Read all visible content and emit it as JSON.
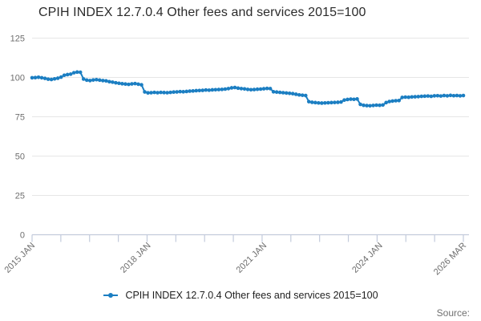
{
  "header": {
    "title": "CPIH INDEX 12.7.0.4 Other fees and services 2015=100"
  },
  "legend": {
    "label": "CPIH INDEX 12.7.0.4 Other fees and services 2015=100"
  },
  "source": {
    "label": "Source:"
  },
  "colors": {
    "line": "#1b7ec2",
    "grid": "#e6e6e6",
    "axis": "#c3cbdc",
    "tick_label": "#6e6e6e",
    "title": "#2b2b2b"
  },
  "chart_data": {
    "type": "line",
    "title": "CPIH INDEX 12.7.0.4 Other fees and services 2015=100",
    "xlabel": "",
    "ylabel": "",
    "ylim": [
      0,
      125
    ],
    "yticks": [
      0,
      25,
      50,
      75,
      100,
      125
    ],
    "grid": "horizontal",
    "legend_position": "bottom-center",
    "x_start": "2015 JAN",
    "x_end": "2026 MAR",
    "x_minor_ticks": 16,
    "x_axis_labels": [
      {
        "label": "2015 JAN",
        "month_index": 0
      },
      {
        "label": "2018 JAN",
        "month_index": 36
      },
      {
        "label": "2021 JAN",
        "month_index": 72
      },
      {
        "label": "2024 JAN",
        "month_index": 108
      },
      {
        "label": "2026 MAR",
        "month_index": 134
      }
    ],
    "series": [
      {
        "name": "CPIH INDEX 12.7.0.4 Other fees and services 2015=100",
        "marker": "circle",
        "values": [
          99.8,
          99.9,
          100.1,
          99.8,
          99.4,
          98.9,
          98.7,
          99.1,
          99.5,
          100.2,
          101.4,
          101.8,
          102.1,
          103.0,
          103.4,
          103.3,
          99.0,
          98.3,
          98.0,
          98.4,
          98.6,
          98.3,
          98.0,
          97.8,
          97.3,
          97.0,
          96.6,
          96.3,
          96.0,
          95.8,
          95.6,
          95.9,
          96.1,
          95.7,
          95.3,
          90.8,
          90.2,
          90.3,
          90.5,
          90.3,
          90.5,
          90.4,
          90.3,
          90.5,
          90.7,
          90.8,
          91.0,
          90.9,
          91.1,
          91.3,
          91.4,
          91.6,
          91.7,
          91.8,
          92.0,
          91.9,
          92.1,
          92.2,
          92.3,
          92.4,
          92.6,
          92.9,
          93.4,
          93.6,
          93.2,
          92.9,
          92.7,
          92.4,
          92.2,
          92.3,
          92.5,
          92.6,
          92.8,
          93.0,
          92.9,
          90.9,
          90.7,
          90.5,
          90.3,
          90.1,
          89.9,
          89.7,
          89.3,
          88.9,
          88.7,
          88.5,
          84.6,
          84.2,
          84.0,
          83.8,
          83.7,
          83.8,
          83.9,
          84.0,
          84.1,
          84.2,
          84.4,
          85.6,
          86.0,
          86.2,
          86.1,
          86.3,
          82.9,
          82.3,
          82.1,
          82.0,
          82.2,
          82.4,
          82.3,
          82.5,
          84.0,
          84.7,
          85.0,
          85.2,
          85.3,
          87.3,
          87.5,
          87.4,
          87.6,
          87.7,
          87.8,
          88.0,
          88.1,
          88.2,
          88.0,
          88.3,
          88.4,
          88.2,
          88.5,
          88.3,
          88.6,
          88.4,
          88.5,
          88.3,
          88.5
        ]
      }
    ]
  }
}
